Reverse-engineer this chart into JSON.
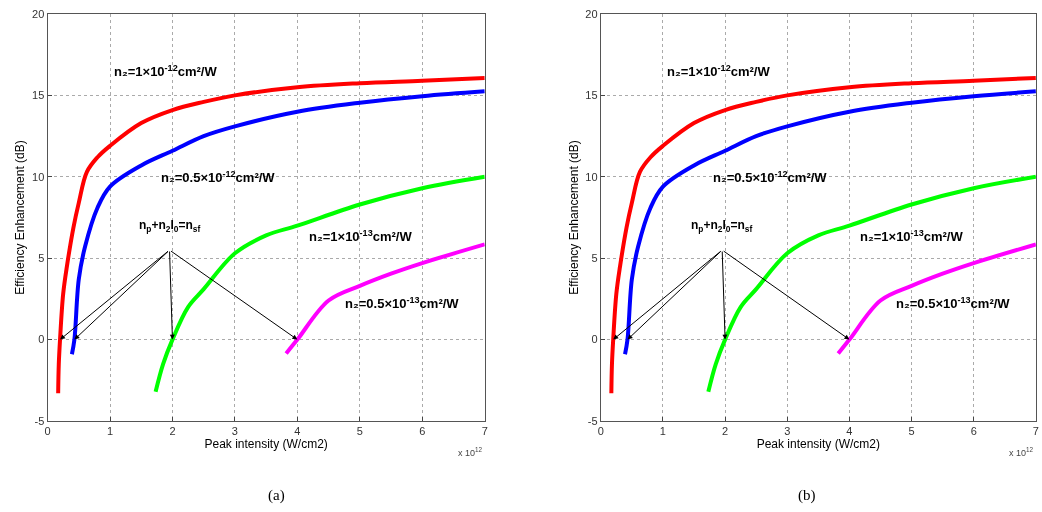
{
  "chart_data": [
    {
      "type": "line",
      "title": "(a)",
      "xlabel": "Peak intensity (W/cm2)",
      "ylabel": "Efficiency Enhancement (dB)",
      "xlim": [
        0,
        7
      ],
      "xticks": [
        0,
        1,
        2,
        3,
        4,
        5,
        6,
        7
      ],
      "ylim": [
        -5,
        20
      ],
      "yticks": [
        -5,
        0,
        5,
        10,
        15,
        20
      ],
      "grid": true,
      "legend": false,
      "marker": "none",
      "line_style": "solid",
      "annotations": [
        "x 10$^{12}$",
        "n$_{p}$+n$_{2}$I$_{0}$=n$_{sf}$"
      ],
      "series": [
        {
          "name": "n₂=1×10$^{-12}$cm²/W",
          "color": "#ff0000",
          "x": [
            0.17,
            0.18,
            0.2,
            0.25,
            0.31,
            0.415,
            0.5,
            0.63,
            0.8,
            1,
            1.5,
            2,
            2.5,
            3,
            4,
            5,
            6,
            7
          ],
          "values": [
            -3.3,
            -1.5,
            0,
            2.8,
            4.5,
            6.9,
            8.4,
            10.3,
            11.2,
            11.9,
            13.3,
            14.1,
            14.6,
            15.0,
            15.5,
            15.75,
            15.9,
            16.07
          ]
        },
        {
          "name": "n₂=0.5×10$^{-12}$cm²/W",
          "color": "#0000ff",
          "x": [
            0.39,
            0.43,
            0.5,
            0.6,
            0.8,
            1,
            1.5,
            2,
            2.5,
            3,
            4,
            5,
            6,
            7
          ],
          "values": [
            -0.9,
            0,
            3.7,
            5.7,
            8.1,
            9.4,
            10.7,
            11.6,
            12.5,
            13.1,
            14.0,
            14.55,
            14.95,
            15.25
          ]
        },
        {
          "name": "n₂=1×10$^{-13}$cm²/W",
          "color": "#00ff00",
          "x": [
            1.73,
            1.85,
            2,
            2.25,
            2.5,
            3,
            3.5,
            4,
            5,
            6,
            7
          ],
          "values": [
            -3.2,
            -1.5,
            0,
            2.0,
            3.1,
            5.3,
            6.4,
            7.0,
            8.3,
            9.3,
            10.0
          ]
        },
        {
          "name": "n₂=0.5×10$^{-13}$cm²/W",
          "color": "#ff00ff",
          "x": [
            3.82,
            4,
            4.5,
            5,
            5.5,
            6,
            7
          ],
          "values": [
            -0.85,
            0,
            2.4,
            3.3,
            4.05,
            4.7,
            5.85
          ]
        }
      ]
    },
    {
      "type": "line",
      "title": "(b)",
      "xlabel": "Peak intensity (W/cm2)",
      "ylabel": "Efficiency Enhancement (dB)",
      "xlim": [
        0,
        7
      ],
      "xticks": [
        0,
        1,
        2,
        3,
        4,
        5,
        6,
        7
      ],
      "ylim": [
        -5,
        20
      ],
      "yticks": [
        -5,
        0,
        5,
        10,
        15,
        20
      ],
      "grid": true,
      "legend": false,
      "marker": "none",
      "line_style": "solid",
      "annotations": [
        "x 10$^{12}$",
        "n$_{p}$+n$_{2}$I$_{0}$=n$_{sf}$"
      ],
      "series": [
        {
          "name": "n₂=1×10$^{-12}$cm²/W",
          "color": "#ff0000",
          "x": [
            0.17,
            0.18,
            0.2,
            0.25,
            0.31,
            0.415,
            0.5,
            0.63,
            0.8,
            1,
            1.5,
            2,
            2.5,
            3,
            4,
            5,
            6,
            7
          ],
          "values": [
            -3.3,
            -1.5,
            0,
            2.8,
            4.5,
            6.9,
            8.4,
            10.3,
            11.2,
            11.9,
            13.3,
            14.1,
            14.6,
            15.0,
            15.5,
            15.75,
            15.9,
            16.07
          ]
        },
        {
          "name": "n₂=0.5×10$^{-12}$cm²/W",
          "color": "#0000ff",
          "x": [
            0.39,
            0.43,
            0.5,
            0.6,
            0.8,
            1,
            1.5,
            2,
            2.5,
            3,
            4,
            5,
            6,
            7
          ],
          "values": [
            -0.9,
            0,
            3.7,
            5.7,
            8.1,
            9.4,
            10.7,
            11.6,
            12.5,
            13.1,
            14.0,
            14.55,
            14.95,
            15.25
          ]
        },
        {
          "name": "n₂=1×10$^{-13}$cm²/W",
          "color": "#00ff00",
          "x": [
            1.73,
            1.85,
            2,
            2.25,
            2.5,
            3,
            3.5,
            4,
            5,
            6,
            7
          ],
          "values": [
            -3.2,
            -1.5,
            0,
            2.0,
            3.1,
            5.3,
            6.4,
            7.0,
            8.3,
            9.3,
            10.0
          ]
        },
        {
          "name": "n₂=0.5×10$^{-13}$cm²/W",
          "color": "#ff00ff",
          "x": [
            3.82,
            4,
            4.5,
            5,
            5.5,
            6,
            7
          ],
          "values": [
            -0.85,
            0,
            2.4,
            3.3,
            4.05,
            4.7,
            5.85
          ]
        }
      ]
    }
  ]
}
